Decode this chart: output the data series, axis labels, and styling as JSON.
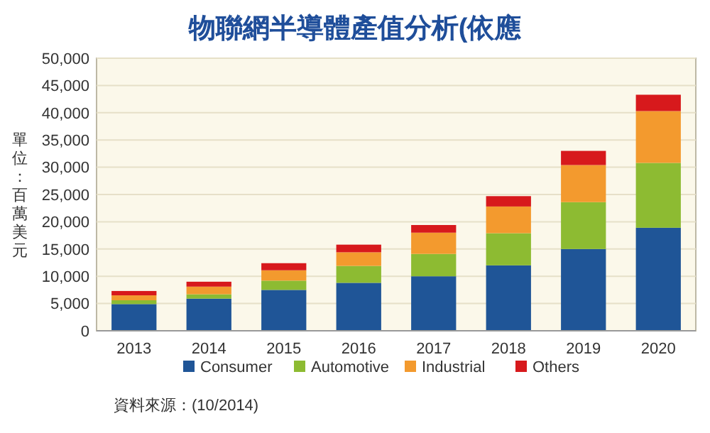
{
  "chart_data": {
    "type": "bar",
    "stacked": true,
    "title": "物聯網半導體產值分析(依應",
    "ylabel": "單位：百萬美元",
    "categories": [
      "2013",
      "2014",
      "2015",
      "2016",
      "2017",
      "2018",
      "2019",
      "2020"
    ],
    "series": [
      {
        "name": "Consumer",
        "color": "#1f5597",
        "values": [
          4900,
          5900,
          7500,
          8800,
          10000,
          12000,
          15000,
          18900
        ]
      },
      {
        "name": "Automotive",
        "color": "#8dbb32",
        "values": [
          700,
          800,
          1700,
          3100,
          4100,
          5900,
          8600,
          11900
        ]
      },
      {
        "name": "Industrial",
        "color": "#f39a2e",
        "values": [
          900,
          1400,
          1900,
          2500,
          3900,
          4900,
          6800,
          9500
        ]
      },
      {
        "name": "Others",
        "color": "#d7191c",
        "values": [
          800,
          900,
          1300,
          1400,
          1400,
          1900,
          2600,
          3000
        ]
      }
    ],
    "ylim": [
      0,
      50000
    ],
    "yticks": [
      {
        "value": 0,
        "label": "0"
      },
      {
        "value": 5000,
        "label": "5,000"
      },
      {
        "value": 10000,
        "label": "10,000"
      },
      {
        "value": 15000,
        "label": "15,000"
      },
      {
        "value": 20000,
        "label": "20,000"
      },
      {
        "value": 25000,
        "label": "25,000"
      },
      {
        "value": 30000,
        "label": "30,000"
      },
      {
        "value": 35000,
        "label": "35,000"
      },
      {
        "value": 40000,
        "label": "40,000"
      },
      {
        "value": 45000,
        "label": "45,000"
      },
      {
        "value": 50000,
        "label": "50,000"
      }
    ],
    "grid": "y",
    "legend": "bottom",
    "annotations": [
      "資料來源：(10/2014)"
    ]
  }
}
